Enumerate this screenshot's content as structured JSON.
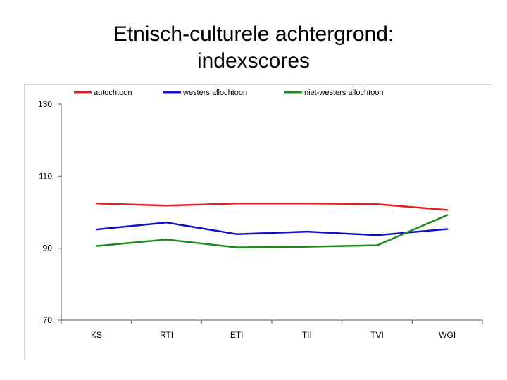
{
  "title_line1": "Etnisch-culturele achtergrond:",
  "title_line2": "indexscores",
  "chart_data": {
    "type": "line",
    "categories": [
      "KS",
      "RTI",
      "ETI",
      "TII",
      "TVI",
      "WGI"
    ],
    "ylim": [
      70,
      130
    ],
    "yticks": [
      "130",
      "110",
      "90",
      "70"
    ],
    "grid": false,
    "legend_position": "top",
    "series": [
      {
        "name": "autochtoon",
        "color": "#e02020",
        "values": [
          102.4,
          101.8,
          102.4,
          102.4,
          102.2,
          100.6
        ]
      },
      {
        "name": "westers allochtoon",
        "color": "#1010c0",
        "values": [
          95.2,
          97.1,
          93.9,
          94.6,
          93.6,
          95.3
        ]
      },
      {
        "name": "niet-westers allochtoon",
        "color": "#1a8a1a",
        "values": [
          90.6,
          92.4,
          90.2,
          90.4,
          90.8,
          99.2
        ]
      }
    ]
  }
}
